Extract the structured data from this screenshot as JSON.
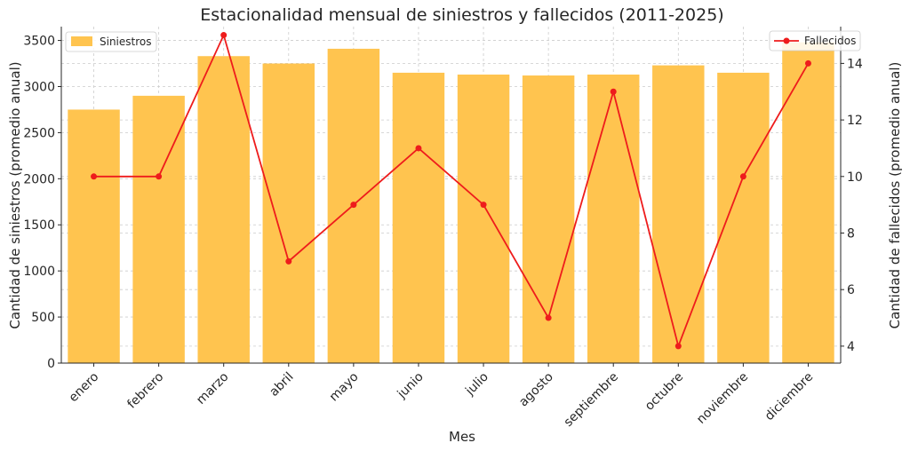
{
  "chart_data": {
    "type": "bar",
    "title": "Estacionalidad mensual de siniestros y fallecidos (2011-2025)",
    "xlabel": "Mes",
    "ylabel": "Cantidad de siniestros (promedio anual)",
    "y2label": "Cantidad de fallecidos (promedio anual)",
    "categories": [
      "enero",
      "febrero",
      "marzo",
      "abril",
      "mayo",
      "junio",
      "julio",
      "agosto",
      "septiembre",
      "octubre",
      "noviembre",
      "diciembre"
    ],
    "ylim": [
      0,
      3650
    ],
    "y2lim": [
      3.4,
      15.3
    ],
    "yticks": [
      0,
      500,
      1000,
      1500,
      2000,
      2500,
      3000,
      3500
    ],
    "y2ticks": [
      4,
      6,
      8,
      10,
      12,
      14
    ],
    "grid": true,
    "series": [
      {
        "name": "Siniestros",
        "kind": "bar",
        "axis": "left",
        "color": "#FFC44F",
        "values": [
          2750,
          2900,
          3330,
          3250,
          3410,
          3150,
          3130,
          3120,
          3130,
          3230,
          3150,
          3480
        ]
      },
      {
        "name": "Fallecidos",
        "kind": "line",
        "axis": "right",
        "color": "#EE1C1C",
        "values": [
          10,
          10,
          15,
          7,
          9,
          11,
          9,
          5,
          13,
          4,
          10,
          14
        ]
      }
    ],
    "legend": {
      "Siniestros": "top-left",
      "Fallecidos": "top-right"
    }
  }
}
